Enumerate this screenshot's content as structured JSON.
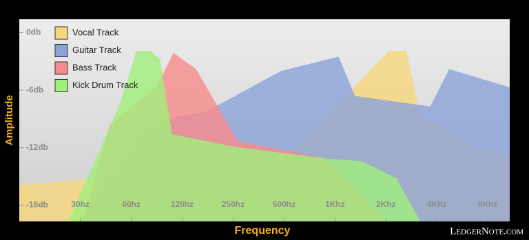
{
  "chart_data": {
    "type": "area",
    "x_label": "Frequency",
    "y_label": "Amplitude",
    "watermark": "LedgerNote.com",
    "xlim": [
      -1.2,
      8.43
    ],
    "ylim": [
      -19.7,
      1.4
    ],
    "xticks": [
      {
        "value": 0,
        "label": "30hz"
      },
      {
        "value": 1,
        "label": "60hz"
      },
      {
        "value": 2,
        "label": "120hz"
      },
      {
        "value": 3,
        "label": "250hz"
      },
      {
        "value": 4,
        "label": "500hz"
      },
      {
        "value": 5,
        "label": "1Khz"
      },
      {
        "value": 6,
        "label": "2Khz"
      },
      {
        "value": 7,
        "label": "4Khz"
      },
      {
        "value": 8,
        "label": "6Khz"
      }
    ],
    "yticks": [
      {
        "value": 0,
        "label": "0db"
      },
      {
        "value": -6,
        "label": "-6db"
      },
      {
        "value": -12,
        "label": "-12db"
      },
      {
        "value": -18,
        "label": "-18db"
      }
    ],
    "series": [
      {
        "name": "Vocal Track",
        "color": "#f7d77c",
        "x": [
          -1.2,
          3.94,
          6.06,
          6.4,
          6.67,
          7.75,
          8.43
        ],
        "values": [
          -15.9,
          -13.6,
          -1.9,
          -1.9,
          -8.6,
          -12,
          -13
        ]
      },
      {
        "name": "Guitar Track",
        "color": "#8ba2d9",
        "x": [
          0.01,
          1.26,
          2.48,
          3.94,
          5.07,
          5.39,
          6.87,
          7.24,
          8.43
        ],
        "values": [
          -19.6,
          -9.5,
          -8.2,
          -4,
          -2.5,
          -6.6,
          -7.7,
          -3.8,
          -5.7
        ]
      },
      {
        "name": "Bass Track",
        "color": "#f78b8b",
        "x": [
          0.04,
          0.58,
          1.5,
          1.83,
          2.27,
          3.09,
          4.78,
          5.99
        ],
        "values": [
          -19.6,
          -9.6,
          -5.6,
          -2.1,
          -3.8,
          -11.3,
          -13.1,
          -19.6
        ]
      },
      {
        "name": "Kick Drum Track",
        "color": "#a0f07c",
        "x": [
          -0.23,
          0.78,
          1.1,
          1.37,
          1.56,
          1.8,
          3.02,
          4.91,
          5.52,
          6.2,
          6.67
        ],
        "values": [
          -19.6,
          -7.4,
          -1.9,
          -1.9,
          -2.7,
          -10.6,
          -11.9,
          -13.2,
          -13.4,
          -15.2,
          -19.6
        ]
      }
    ]
  }
}
